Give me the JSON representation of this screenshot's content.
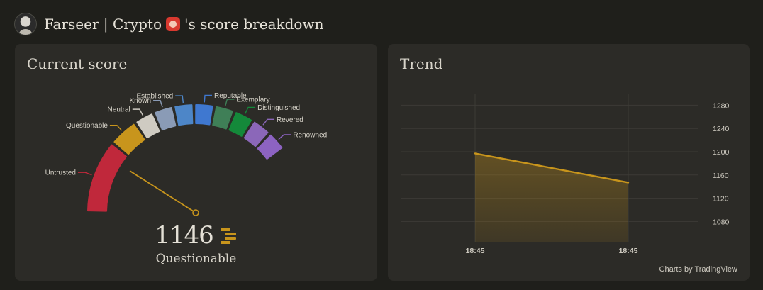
{
  "header": {
    "title_prefix": "Farseer | Crypto",
    "title_suffix": "'s score breakdown",
    "emoji_icon": "red-cat-face-icon"
  },
  "current_score": {
    "title": "Current score",
    "value": "1146",
    "tier": "Questionable",
    "tier_icon": "tier-bars-icon",
    "needle_fraction": 0.18,
    "gauge_segments": [
      {
        "label": "Untrusted",
        "color": "#c0283b"
      },
      {
        "label": "Questionable",
        "color": "#c8951c"
      },
      {
        "label": "Neutral",
        "color": "#cfcbc2"
      },
      {
        "label": "Known",
        "color": "#8a9bb6"
      },
      {
        "label": "Established",
        "color": "#4d86c8"
      },
      {
        "label": "Reputable",
        "color": "#3f78d0"
      },
      {
        "label": "Exemplary",
        "color": "#3f7f57"
      },
      {
        "label": "Distinguished",
        "color": "#14893a"
      },
      {
        "label": "Revered",
        "color": "#8b67b9"
      },
      {
        "label": "Renowned",
        "color": "#8d63c2"
      }
    ]
  },
  "trend": {
    "title": "Trend",
    "credit": "Charts by TradingView"
  },
  "chart_data": {
    "type": "area",
    "title": "Trend",
    "x": [
      "18:45",
      "18:45"
    ],
    "series": [
      {
        "values": [
          1197,
          1147
        ],
        "color": "#c8951c"
      }
    ],
    "ylim": [
      1050,
      1300
    ],
    "yticks": [
      1080,
      1120,
      1160,
      1200,
      1240,
      1280
    ],
    "grid": true
  }
}
